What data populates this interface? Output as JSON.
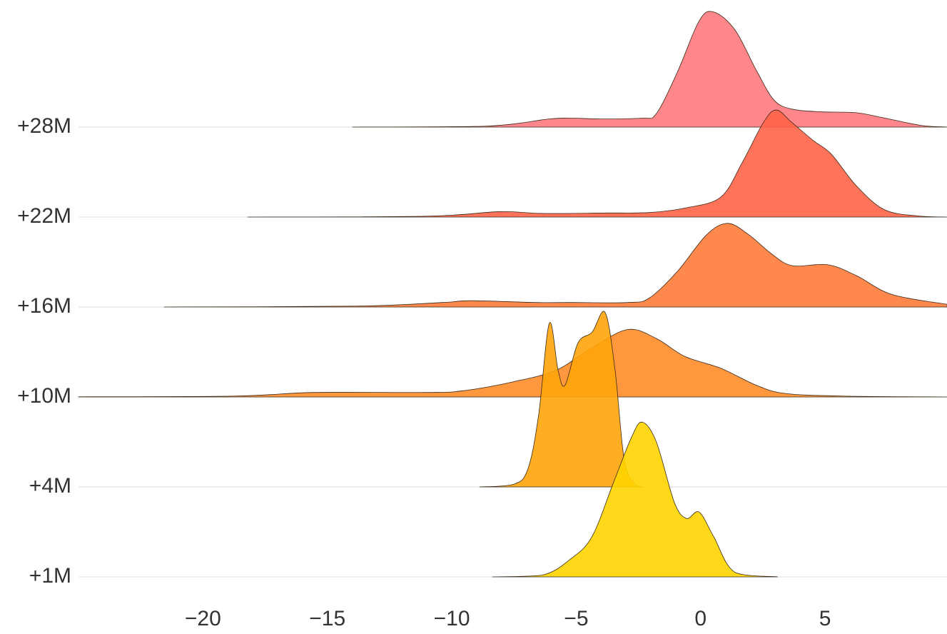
{
  "chart_data": {
    "type": "ridgeline",
    "grid": true,
    "xlim": [
      -25,
      9.9
    ],
    "xticks": [
      {
        "value": -20,
        "label": "−20"
      },
      {
        "value": -15,
        "label": "−15"
      },
      {
        "value": -10,
        "label": "−10"
      },
      {
        "value": -5,
        "label": "−5"
      },
      0,
      5
    ],
    "series": [
      {
        "name": "+28M",
        "color": "#ff7a7e",
        "x": [
          -14.0,
          -8.66,
          -6.08,
          -5.2,
          -4.07,
          -2.35,
          -1.78,
          -0.92,
          -0.06,
          0.52,
          1.38,
          2.24,
          2.95,
          3.67,
          4.82,
          6.25,
          7.4,
          8.83,
          9.9
        ],
        "values": [
          0,
          0.01,
          0.09,
          0.1,
          0.09,
          0.1,
          0.15,
          0.62,
          1.18,
          1.28,
          1.08,
          0.63,
          0.3,
          0.2,
          0.17,
          0.16,
          0.1,
          0.02,
          0
        ]
      },
      {
        "name": "+22M",
        "color": "#ff6448",
        "x": [
          -18.2,
          -10.95,
          -8.08,
          -6.36,
          -3.78,
          -2.06,
          -0.63,
          0.8,
          1.66,
          2.52,
          3.04,
          3.67,
          4.53,
          5.25,
          6.25,
          7.4,
          8.83,
          9.9
        ],
        "values": [
          0,
          0.01,
          0.06,
          0.04,
          0.045,
          0.05,
          0.1,
          0.22,
          0.6,
          1.05,
          1.19,
          1.05,
          0.85,
          0.7,
          0.35,
          0.08,
          0.01,
          0
        ]
      },
      {
        "name": "+16M",
        "color": "#ff7c3a",
        "x": [
          -21.56,
          -13.82,
          -10.38,
          -9.23,
          -6.65,
          -5.22,
          -2.92,
          -2.06,
          -0.92,
          0.23,
          1.09,
          1.95,
          2.81,
          3.67,
          5.1,
          6.25,
          7.68,
          9.9
        ],
        "values": [
          0,
          0.01,
          0.05,
          0.07,
          0.05,
          0.05,
          0.05,
          0.1,
          0.4,
          0.8,
          0.93,
          0.8,
          0.6,
          0.46,
          0.47,
          0.35,
          0.14,
          0.03
        ]
      },
      {
        "name": "+10M",
        "color": "#ff8c2a",
        "x": [
          -25,
          -18.7,
          -15.54,
          -10.95,
          -9.52,
          -7.51,
          -5.79,
          -4.36,
          -2.92,
          -1.78,
          -0.63,
          0.8,
          2.24,
          3.38,
          5.68,
          9.9
        ],
        "values": [
          0.002,
          0.01,
          0.05,
          0.05,
          0.07,
          0.17,
          0.3,
          0.55,
          0.75,
          0.65,
          0.45,
          0.32,
          0.13,
          0.04,
          0.01,
          0
        ]
      },
      {
        "name": "+4M",
        "color": "#ffa40a",
        "x": [
          -8.89,
          -7.51,
          -6.94,
          -6.51,
          -6.08,
          -5.73,
          -5.45,
          -4.93,
          -4.36,
          -3.84,
          -3.44,
          -3.07,
          -2.64,
          -2.35
        ],
        "values": [
          0,
          0.03,
          0.2,
          0.8,
          1.82,
          1.3,
          1.13,
          1.6,
          1.72,
          1.94,
          1.3,
          0.3,
          0.03,
          0
        ]
      },
      {
        "name": "+1M",
        "color": "#ffd500",
        "x": [
          -8.37,
          -6.36,
          -5.22,
          -4.36,
          -3.5,
          -2.78,
          -2.35,
          -1.78,
          -1.06,
          -0.57,
          -0.06,
          0.52,
          1.38,
          3.1
        ],
        "values": [
          0,
          0.02,
          0.2,
          0.45,
          1.05,
          1.55,
          1.72,
          1.5,
          0.83,
          0.65,
          0.72,
          0.45,
          0.05,
          0
        ]
      }
    ]
  }
}
